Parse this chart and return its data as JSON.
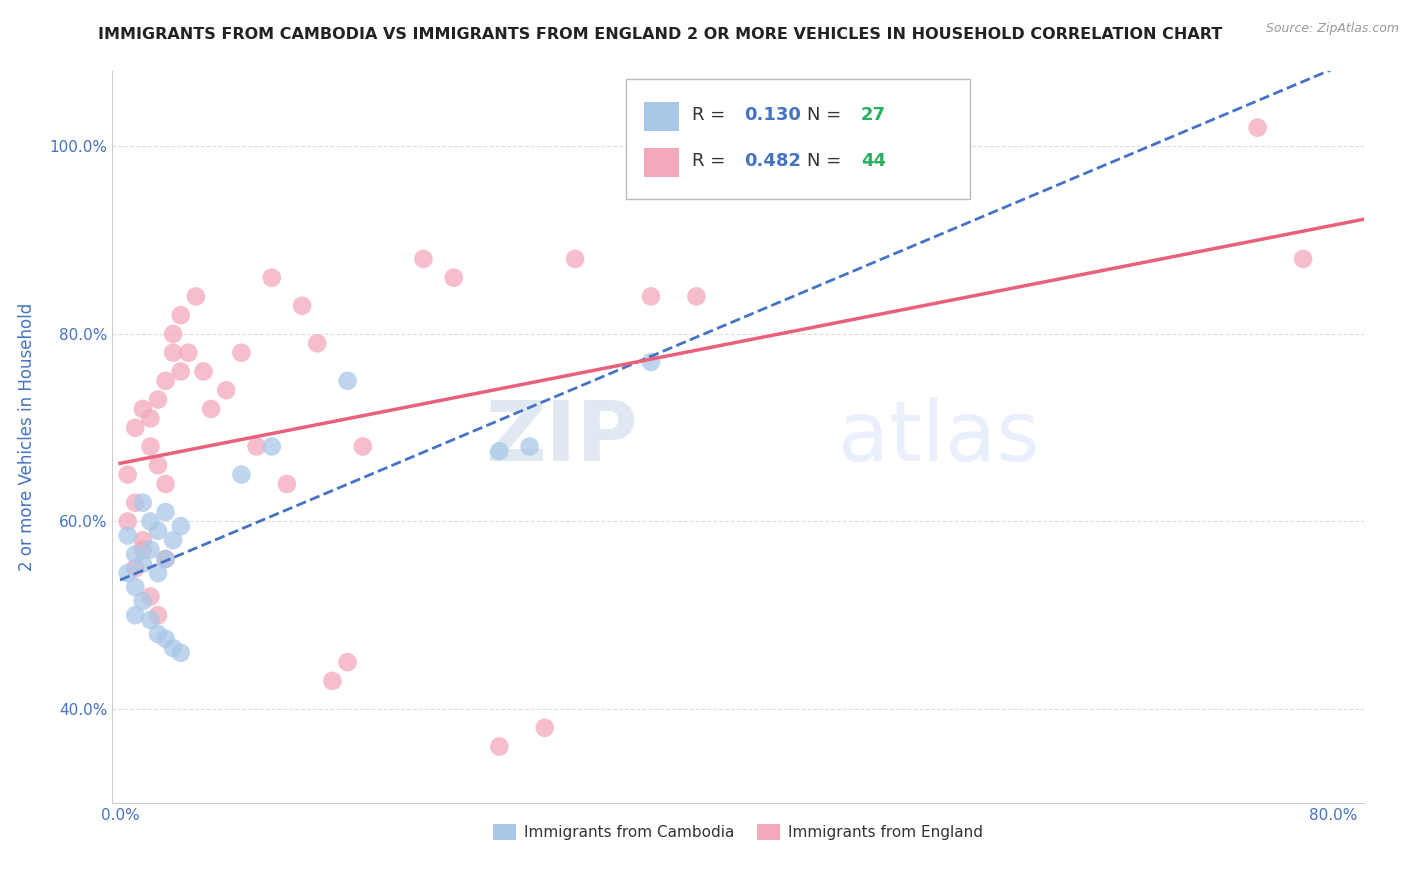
{
  "title": "IMMIGRANTS FROM CAMBODIA VS IMMIGRANTS FROM ENGLAND 2 OR MORE VEHICLES IN HOUSEHOLD CORRELATION CHART",
  "source": "Source: ZipAtlas.com",
  "ylabel_text": "2 or more Vehicles in Household",
  "xlim": [
    -0.005,
    0.82
  ],
  "ylim": [
    0.3,
    1.08
  ],
  "xticks": [
    0.0,
    0.1,
    0.2,
    0.3,
    0.4,
    0.5,
    0.6,
    0.7,
    0.8
  ],
  "xticklabels": [
    "0.0%",
    "",
    "",
    "",
    "",
    "",
    "",
    "",
    "80.0%"
  ],
  "yticks": [
    0.4,
    0.6,
    0.8,
    1.0
  ],
  "yticklabels": [
    "40.0%",
    "60.0%",
    "80.0%",
    "100.0%"
  ],
  "legend_r_cambodia": "0.130",
  "legend_n_cambodia": "27",
  "legend_r_england": "0.482",
  "legend_n_england": "44",
  "color_cambodia": "#a8c8e8",
  "color_england": "#f4a8bc",
  "line_color_cambodia": "#4472c4",
  "line_color_england": "#e8607a",
  "watermark_zip": "ZIP",
  "watermark_atlas": "atlas",
  "r_color": "#4472c4",
  "n_color": "#27ae60",
  "cambodia_x": [
    0.005,
    0.01,
    0.015,
    0.02,
    0.025,
    0.03,
    0.035,
    0.04,
    0.005,
    0.01,
    0.015,
    0.02,
    0.025,
    0.03,
    0.01,
    0.015,
    0.02,
    0.025,
    0.03,
    0.035,
    0.04,
    0.08,
    0.1,
    0.15,
    0.25,
    0.27,
    0.35
  ],
  "cambodia_y": [
    0.585,
    0.565,
    0.62,
    0.6,
    0.59,
    0.61,
    0.58,
    0.595,
    0.545,
    0.53,
    0.555,
    0.57,
    0.545,
    0.56,
    0.5,
    0.515,
    0.495,
    0.48,
    0.475,
    0.465,
    0.46,
    0.65,
    0.68,
    0.75,
    0.675,
    0.68,
    0.77
  ],
  "england_x": [
    0.005,
    0.01,
    0.015,
    0.02,
    0.025,
    0.03,
    0.035,
    0.04,
    0.005,
    0.01,
    0.015,
    0.02,
    0.025,
    0.03,
    0.01,
    0.015,
    0.02,
    0.025,
    0.03,
    0.035,
    0.04,
    0.045,
    0.05,
    0.055,
    0.06,
    0.07,
    0.08,
    0.09,
    0.1,
    0.11,
    0.12,
    0.13,
    0.14,
    0.15,
    0.16,
    0.2,
    0.22,
    0.25,
    0.28,
    0.3,
    0.35,
    0.38,
    0.75,
    0.78
  ],
  "england_y": [
    0.65,
    0.7,
    0.72,
    0.68,
    0.66,
    0.64,
    0.78,
    0.76,
    0.6,
    0.62,
    0.58,
    0.71,
    0.73,
    0.75,
    0.55,
    0.57,
    0.52,
    0.5,
    0.56,
    0.8,
    0.82,
    0.78,
    0.84,
    0.76,
    0.72,
    0.74,
    0.78,
    0.68,
    0.86,
    0.64,
    0.83,
    0.79,
    0.43,
    0.45,
    0.68,
    0.88,
    0.86,
    0.36,
    0.38,
    0.88,
    0.84,
    0.84,
    1.02,
    0.88
  ],
  "background_color": "#ffffff",
  "grid_color": "#dddddd",
  "title_color": "#222222",
  "title_fontsize": 11.5,
  "axis_label_color": "#4472c4",
  "tick_label_color": "#4472c4"
}
